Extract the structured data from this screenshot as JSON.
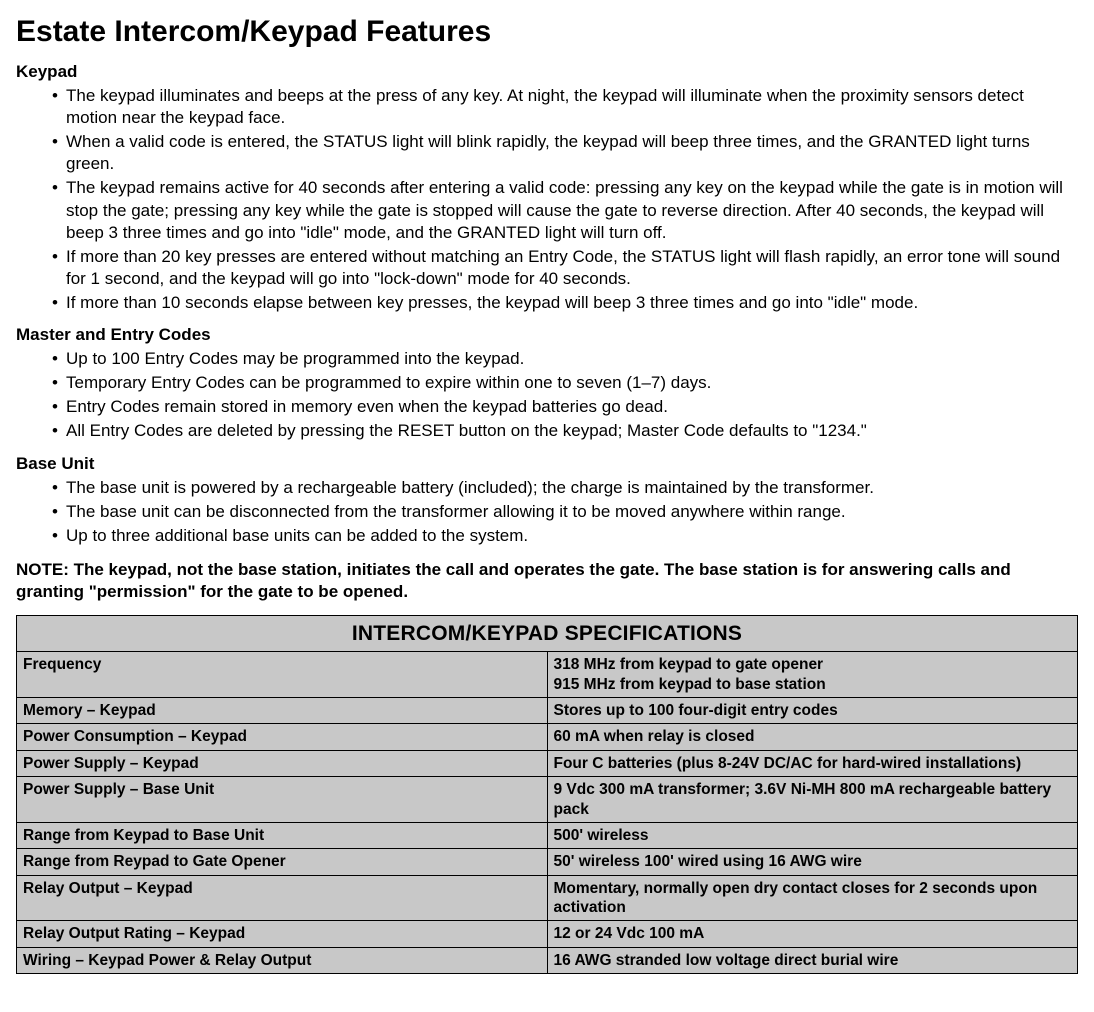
{
  "title": "Estate Intercom/Keypad Features",
  "sections": [
    {
      "heading": "Keypad",
      "items": [
        "The keypad illuminates and beeps at the press of any key. At night, the keypad will illuminate when the proximity sensors detect motion near the keypad face.",
        "When a valid code is entered, the STATUS light will blink rapidly, the keypad will beep three times, and the GRANTED light turns green.",
        "The keypad remains active for 40 seconds after entering a valid code: pressing any key on the keypad while the gate is in motion will stop the gate; pressing any key while the gate is stopped will cause the gate to reverse direction. After 40 seconds, the keypad will beep 3 three times and go into \"idle\" mode, and the GRANTED light will turn off.",
        "If more than 20 key presses are entered without matching an Entry Code, the STATUS light will flash rapidly, an error tone will sound for 1 second, and the keypad will go into \"lock-down\" mode for 40 seconds.",
        "If more than 10 seconds elapse between key presses, the keypad will beep 3 three times and go into \"idle\" mode."
      ]
    },
    {
      "heading": "Master and Entry Codes",
      "items": [
        "Up to 100 Entry Codes may be programmed into the keypad.",
        "Temporary Entry Codes can be programmed to expire within one to seven (1–7) days.",
        "Entry Codes remain stored in memory even when the keypad batteries go dead.",
        "All Entry Codes are deleted by pressing the RESET button on the keypad; Master Code defaults to \"1234.\""
      ]
    },
    {
      "heading": "Base Unit",
      "items": [
        "The base unit is powered by a rechargeable battery (included); the charge is maintained by the transformer.",
        "The base unit can be disconnected from the transformer allowing it to be moved anywhere within range.",
        "Up to three additional base units can be added to the system."
      ]
    }
  ],
  "note": "NOTE: The keypad, not the base station, initiates the call and operates the gate. The base station is for answering calls and granting \"permission\" for the gate to be opened.",
  "spec_table": {
    "title": "INTERCOM/KEYPAD SPECIFICATIONS",
    "rows": [
      {
        "label": "Frequency",
        "value": "318 MHz from keypad to gate opener\n915 MHz from keypad to base station"
      },
      {
        "label": "Memory – Keypad",
        "value": "Stores up to 100 four-digit entry codes"
      },
      {
        "label": "Power Consumption – Keypad",
        "value": "60 mA when relay is closed"
      },
      {
        "label": "Power Supply – Keypad",
        "value": "Four C batteries (plus 8-24V DC/AC for hard-wired installations)"
      },
      {
        "label": "Power Supply – Base Unit",
        "value": "9 Vdc 300 mA transformer; 3.6V Ni-MH 800 mA rechargeable battery pack"
      },
      {
        "label": "Range from Keypad to Base Unit",
        "value": "500' wireless"
      },
      {
        "label": "Range from Reypad to Gate Opener",
        "value": "50' wireless 100' wired using 16 AWG wire"
      },
      {
        "label": "Relay Output – Keypad",
        "value": "Momentary, normally open dry contact closes for 2 seconds upon activation"
      },
      {
        "label": "Relay Output Rating – Keypad",
        "value": "12 or 24 Vdc 100 mA"
      },
      {
        "label": "Wiring – Keypad Power & Relay Output",
        "value": "16 AWG stranded low voltage direct burial wire"
      }
    ]
  },
  "colors": {
    "background": "#ffffff",
    "text": "#000000",
    "table_fill": "#c8c8c8",
    "table_border": "#000000"
  }
}
